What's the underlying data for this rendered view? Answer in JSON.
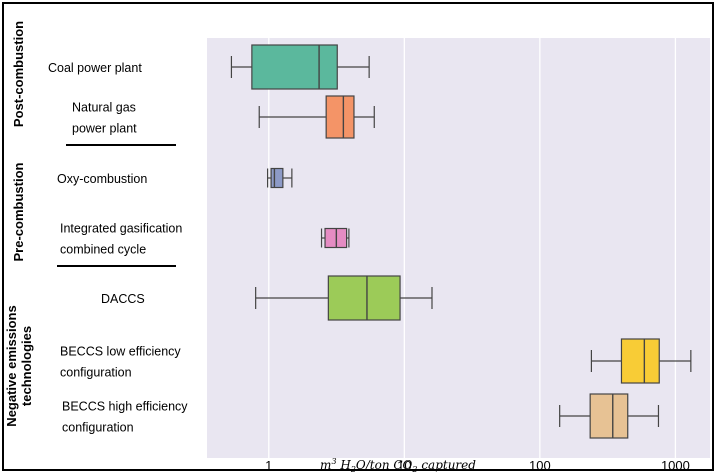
{
  "chart_data": {
    "type": "boxplot",
    "orientation": "horizontal",
    "x_scale": "log",
    "xlim": [
      0.35,
      1800
    ],
    "xticks": [
      {
        "value": 1,
        "label": "1"
      },
      {
        "value": 10,
        "label": "10"
      },
      {
        "value": 100,
        "label": "100"
      },
      {
        "value": 1000,
        "label": "1000"
      }
    ],
    "xlabel": {
      "pre": "m",
      "sup": "3",
      "mid1": " H",
      "sub1": "2",
      "mid2": "O/ton CO",
      "sub2": "2",
      "post": " captured"
    },
    "grid": "vertical",
    "plot_background": "#e9e6f1",
    "groups": [
      {
        "label": "Post-combustion",
        "categories": [
          0,
          1
        ]
      },
      {
        "label": "Pre-combustion",
        "categories": [
          2,
          3
        ]
      },
      {
        "label": "Negative emissions technologies",
        "categories": [
          4,
          5,
          6
        ]
      }
    ],
    "categories": [
      {
        "lines": [
          "Coal power plant"
        ],
        "min": 0.53,
        "q1": 0.75,
        "median": 2.35,
        "q3": 3.2,
        "max": 5.5,
        "color": "#5bb89d"
      },
      {
        "lines": [
          "Natural gas",
          "power plant"
        ],
        "min": 0.85,
        "q1": 2.65,
        "median": 3.55,
        "q3": 4.25,
        "max": 6.0,
        "color": "#f49467"
      },
      {
        "lines": [
          "Oxy-combustion"
        ],
        "min": 0.98,
        "q1": 1.04,
        "median": 1.1,
        "q3": 1.27,
        "max": 1.48,
        "color": "#8d9ac7"
      },
      {
        "lines": [
          "Integrated gasification",
          "combined cycle"
        ],
        "min": 2.45,
        "q1": 2.6,
        "median": 3.15,
        "q3": 3.75,
        "max": 3.9,
        "color": "#e58cc3"
      },
      {
        "lines": [
          "DACCS"
        ],
        "min": 0.8,
        "q1": 2.75,
        "median": 5.3,
        "q3": 9.3,
        "max": 16.0,
        "color": "#9ccb58"
      },
      {
        "lines": [
          "BECCS low efficiency",
          "configuration"
        ],
        "min": 240,
        "q1": 400,
        "median": 590,
        "q3": 760,
        "max": 1300,
        "color": "#f8cc36"
      },
      {
        "lines": [
          "BECCS high efficiency",
          "configuration"
        ],
        "min": 140,
        "q1": 235,
        "median": 345,
        "q3": 445,
        "max": 750,
        "color": "#e7c294"
      }
    ]
  }
}
